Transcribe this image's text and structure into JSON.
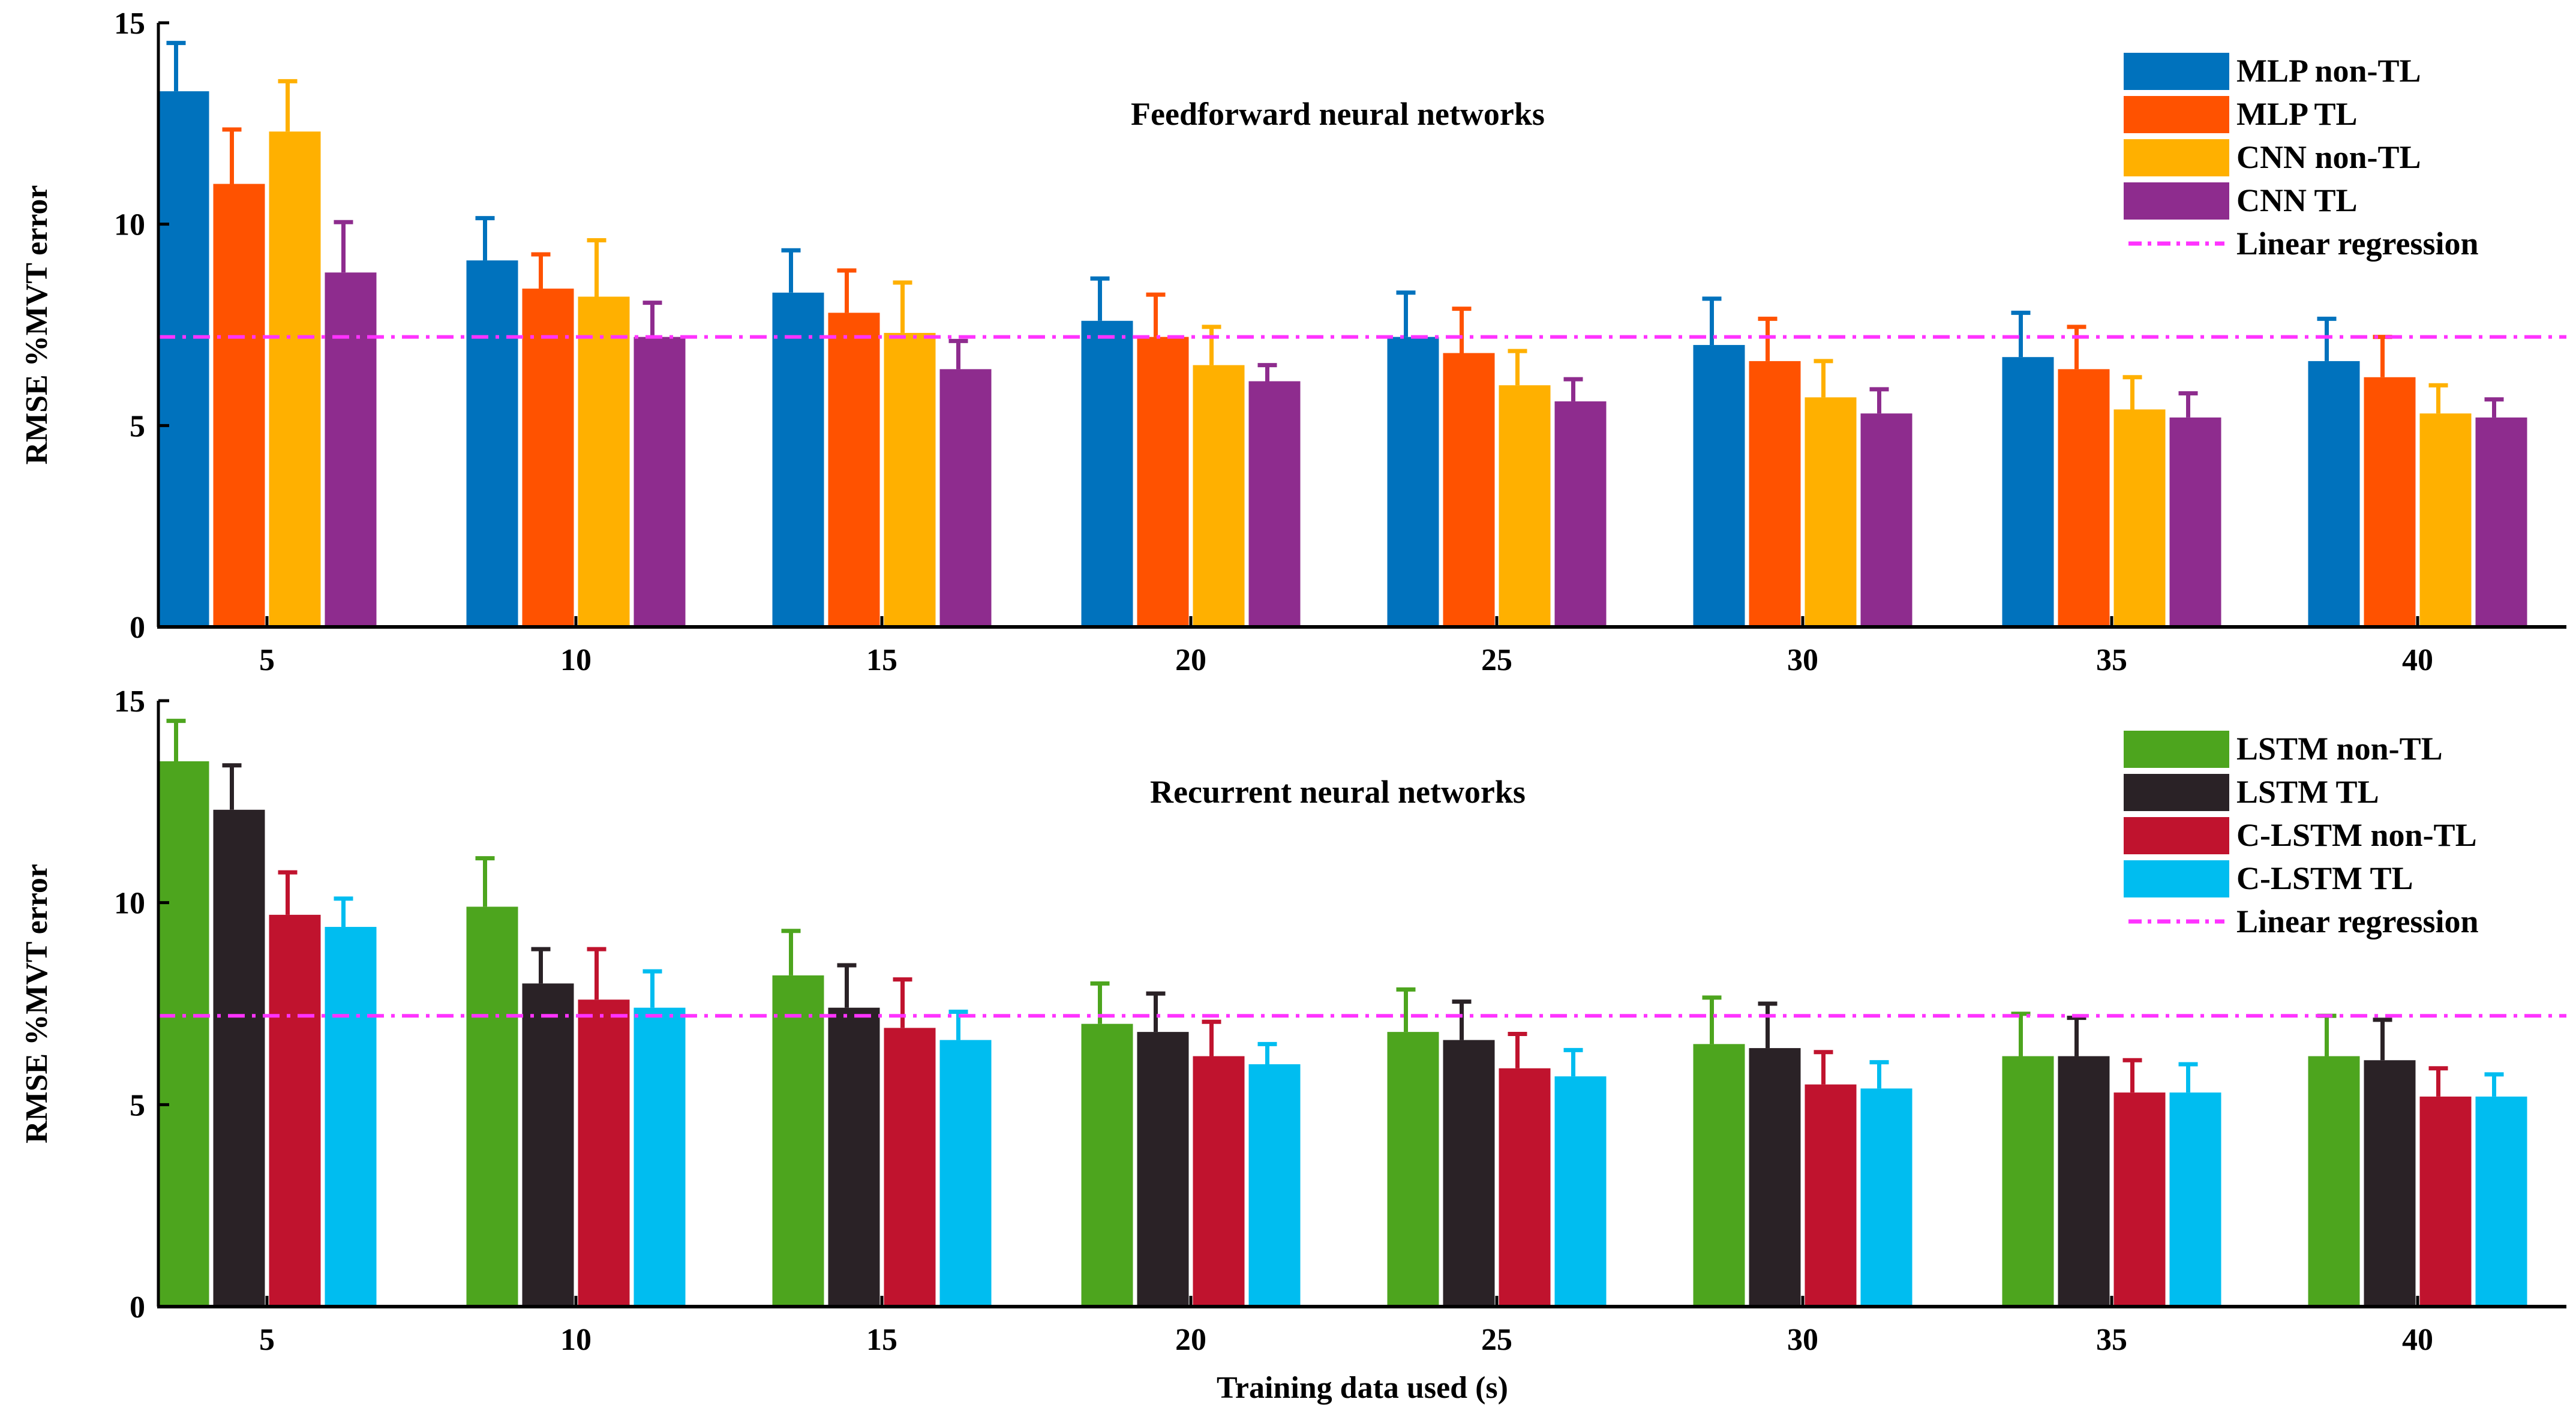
{
  "chart_data": [
    {
      "type": "bar",
      "title": "Feedforward neural networks",
      "xlabel": "",
      "ylabel": "RMSE %MVT error",
      "categories": [
        "5",
        "10",
        "15",
        "20",
        "25",
        "30",
        "35",
        "40"
      ],
      "ylim": [
        0,
        15
      ],
      "yticks": [
        "0",
        "5",
        "10",
        "15"
      ],
      "legend_position": "top-right",
      "reference_line": {
        "name": "Linear regression",
        "value": 7.2,
        "color": "#FF33FF",
        "style": "dash-dot"
      },
      "series": [
        {
          "name": "MLP non-TL",
          "color": "#0072BD",
          "values": [
            13.3,
            9.1,
            8.3,
            7.6,
            7.2,
            7.0,
            6.7,
            6.6
          ],
          "errors": [
            1.2,
            1.05,
            1.05,
            1.05,
            1.1,
            1.15,
            1.1,
            1.05
          ]
        },
        {
          "name": "MLP TL",
          "color": "#FF5200",
          "values": [
            11.0,
            8.4,
            7.8,
            7.2,
            6.8,
            6.6,
            6.4,
            6.2
          ],
          "errors": [
            1.35,
            0.85,
            1.05,
            1.05,
            1.1,
            1.05,
            1.05,
            1.0
          ]
        },
        {
          "name": "CNN non-TL",
          "color": "#FFB000",
          "values": [
            12.3,
            8.2,
            7.3,
            6.5,
            6.0,
            5.7,
            5.4,
            5.3
          ],
          "errors": [
            1.25,
            1.4,
            1.25,
            0.95,
            0.85,
            0.9,
            0.8,
            0.7
          ]
        },
        {
          "name": "CNN TL",
          "color": "#8E2C8E",
          "values": [
            8.8,
            7.2,
            6.4,
            6.1,
            5.6,
            5.3,
            5.2,
            5.2
          ],
          "errors": [
            1.25,
            0.85,
            0.7,
            0.4,
            0.55,
            0.6,
            0.6,
            0.45
          ]
        }
      ]
    },
    {
      "type": "bar",
      "title": "Recurrent neural networks",
      "xlabel": "Training data used (s)",
      "ylabel": "RMSE %MVT error",
      "categories": [
        "5",
        "10",
        "15",
        "20",
        "25",
        "30",
        "35",
        "40"
      ],
      "ylim": [
        0,
        15
      ],
      "yticks": [
        "0",
        "5",
        "10",
        "15"
      ],
      "legend_position": "top-right",
      "reference_line": {
        "name": "Linear regression",
        "value": 7.2,
        "color": "#FF33FF",
        "style": "dash-dot"
      },
      "series": [
        {
          "name": "LSTM non-TL",
          "color": "#4DA51E",
          "values": [
            13.5,
            9.9,
            8.2,
            7.0,
            6.8,
            6.5,
            6.2,
            6.2
          ],
          "errors": [
            1.0,
            1.2,
            1.1,
            1.0,
            1.05,
            1.15,
            1.05,
            1.0
          ]
        },
        {
          "name": "LSTM TL",
          "color": "#2A2226",
          "values": [
            12.3,
            8.0,
            7.4,
            6.8,
            6.6,
            6.4,
            6.2,
            6.1
          ],
          "errors": [
            1.1,
            0.85,
            1.05,
            0.95,
            0.95,
            1.1,
            0.95,
            1.0
          ]
        },
        {
          "name": "C-LSTM non-TL",
          "color": "#C0132E",
          "values": [
            9.7,
            7.6,
            6.9,
            6.2,
            5.9,
            5.5,
            5.3,
            5.2
          ],
          "errors": [
            1.05,
            1.25,
            1.2,
            0.85,
            0.85,
            0.8,
            0.8,
            0.7
          ]
        },
        {
          "name": "C-LSTM TL",
          "color": "#00BDF0",
          "values": [
            9.4,
            7.4,
            6.6,
            6.0,
            5.7,
            5.4,
            5.3,
            5.2
          ],
          "errors": [
            0.7,
            0.9,
            0.7,
            0.5,
            0.65,
            0.65,
            0.7,
            0.55
          ]
        }
      ]
    }
  ]
}
